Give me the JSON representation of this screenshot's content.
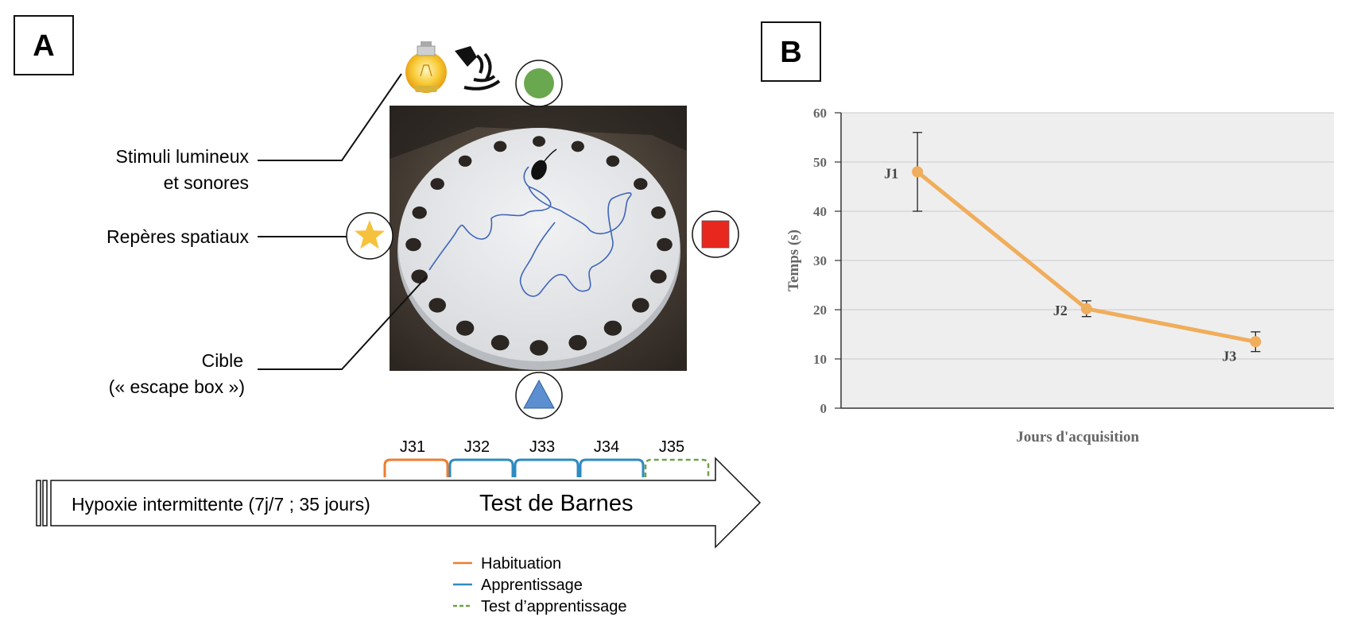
{
  "panel_a": {
    "label": "A",
    "annotations": {
      "stimuli_line1": "Stimuli lumineux",
      "stimuli_line2": "et sonores",
      "spatial_cues": "Repères spatiaux",
      "target_line1": "Cible",
      "target_line2": "(« escape box »)"
    },
    "cue_icons": {
      "top": "green-circle-icon",
      "left": "yellow-star-icon",
      "right": "red-square-icon",
      "bottom": "blue-triangle-icon"
    },
    "colors": {
      "green": "#6aa84f",
      "yellow": "#f6c23e",
      "red": "#e8281e",
      "blue": "#5b8fd0",
      "habituation": "#ed7d31",
      "learning": "#2e8bc0",
      "test": "#70a04a"
    },
    "timeline": {
      "days": [
        "J31",
        "J32",
        "J33",
        "J34",
        "J35"
      ],
      "arrow_label": "Hypoxie intermittente (7j/7 ; 35 jours)",
      "test_label": "Test de Barnes"
    },
    "legend": [
      {
        "label": "Habituation",
        "style": "solid",
        "color": "#ed7d31"
      },
      {
        "label": "Apprentissage",
        "style": "solid",
        "color": "#2e8bc0"
      },
      {
        "label": "Test d’apprentissage",
        "style": "dashed",
        "color": "#70a04a"
      }
    ]
  },
  "panel_b": {
    "label": "B"
  },
  "chart_data": {
    "type": "line",
    "title": "",
    "xlabel": "Jours d'acquisition",
    "ylabel": "Temps (s)",
    "ylim": [
      0,
      60
    ],
    "yticks": [
      0,
      10,
      20,
      30,
      40,
      50,
      60
    ],
    "grid": true,
    "line_color": "#f0ad5b",
    "series": [
      {
        "points": [
          {
            "label": "J1",
            "y": 48,
            "err_low": 40,
            "err_high": 56
          },
          {
            "label": "J2",
            "y": 20.2,
            "err_low": 18.6,
            "err_high": 21.8
          },
          {
            "label": "J3",
            "y": 13.5,
            "err_low": 11.5,
            "err_high": 15.5
          }
        ]
      }
    ]
  }
}
